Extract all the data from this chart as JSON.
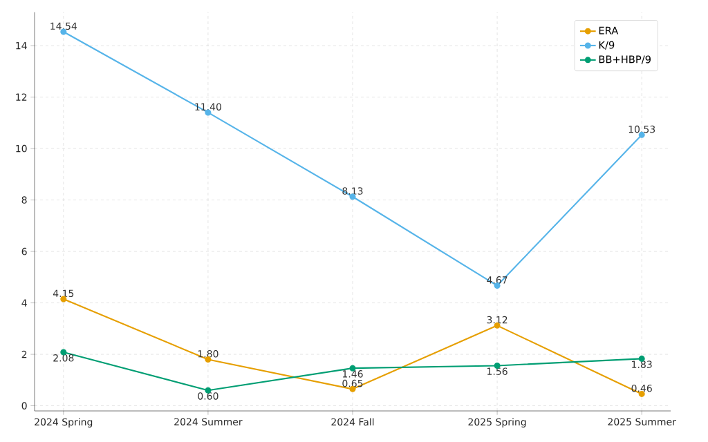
{
  "chart_data": {
    "type": "line",
    "categories": [
      "2024 Spring",
      "2024 Summer",
      "2024 Fall",
      "2025 Spring",
      "2025 Summer"
    ],
    "series": [
      {
        "name": "ERA",
        "color": "#e69f00",
        "values": [
          4.15,
          1.8,
          0.65,
          3.12,
          0.46
        ],
        "value_labels": [
          "4.15",
          "1.80",
          "0.65",
          "3.12",
          "0.46"
        ]
      },
      {
        "name": "K/9",
        "color": "#56b4e9",
        "values": [
          14.54,
          11.4,
          8.13,
          4.67,
          10.53
        ],
        "value_labels": [
          "14.54",
          "11.40",
          "8.13",
          "4.67",
          "10.53"
        ]
      },
      {
        "name": "BB+HBP/9",
        "color": "#009e73",
        "values": [
          2.08,
          0.6,
          1.46,
          1.56,
          1.83
        ],
        "value_labels": [
          "2.08",
          "0.60",
          "1.46",
          "1.56",
          "1.83"
        ]
      }
    ],
    "ylim": [
      -0.2,
      15.3
    ],
    "yticks": [
      0,
      2,
      4,
      6,
      8,
      10,
      12,
      14
    ],
    "grid": true,
    "legend": "top right",
    "marker": "circle",
    "line_style": "solid"
  }
}
